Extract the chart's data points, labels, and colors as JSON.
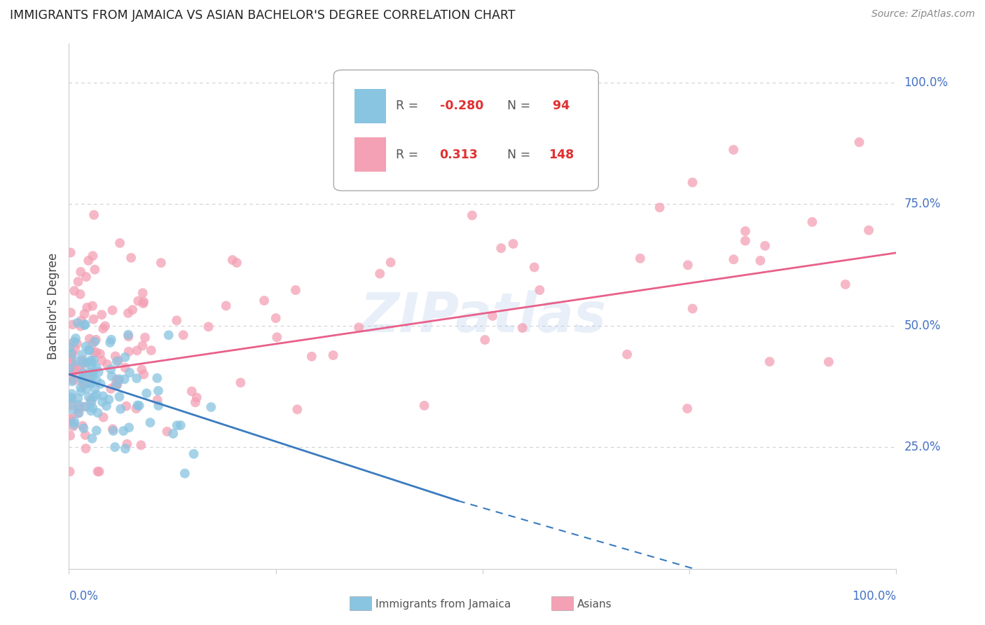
{
  "title": "IMMIGRANTS FROM JAMAICA VS ASIAN BACHELOR'S DEGREE CORRELATION CHART",
  "source": "Source: ZipAtlas.com",
  "ylabel": "Bachelor's Degree",
  "ytick_labels": [
    "100.0%",
    "75.0%",
    "50.0%",
    "25.0%"
  ],
  "ytick_positions": [
    1.0,
    0.75,
    0.5,
    0.25
  ],
  "blue_R": -0.28,
  "blue_N": 94,
  "pink_R": 0.313,
  "pink_N": 148,
  "watermark": "ZIPatlas",
  "background_color": "#ffffff",
  "grid_color": "#d0d0d0",
  "blue_color": "#89c4e1",
  "pink_color": "#f4a0b5",
  "blue_line_color": "#3a7bbf",
  "pink_line_color": "#e8608a",
  "title_color": "#222222",
  "source_color": "#888888",
  "label_color": "#4472c4",
  "axis_color": "#cccccc"
}
